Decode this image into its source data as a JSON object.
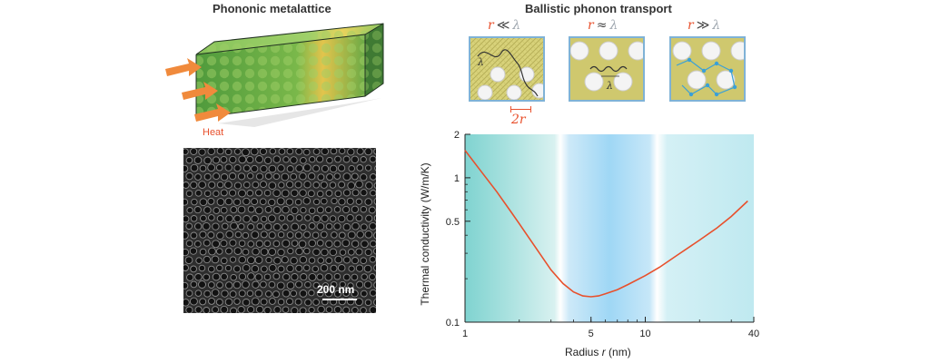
{
  "left_panel": {
    "title": "Phononic metalattice",
    "heat_label": "Heat",
    "sem_scale_label": "200 nm"
  },
  "right_panel": {
    "title": "Ballistic phonon transport",
    "regimes": [
      {
        "r": "r",
        "relation": "≪",
        "lambda": "λ"
      },
      {
        "r": "r",
        "relation": "≈",
        "lambda": "λ"
      },
      {
        "r": "r",
        "relation": "≫",
        "lambda": "λ"
      }
    ],
    "diameter_label": "2r",
    "wavelength_label": "λ"
  },
  "colors": {
    "heat_arrow": "#f08a3c",
    "curve": "#e8502c",
    "tile_border": "#7fb2d6",
    "tile_fill": "#c9c46a"
  },
  "chart_data": {
    "type": "line",
    "title": "",
    "xlabel_prefix": "Radius ",
    "xlabel_var": "r",
    "xlabel_suffix": " (nm)",
    "ylabel": "Thermal conductivity (W/m/K)",
    "xscale": "log",
    "yscale": "log",
    "xlim": [
      1,
      40
    ],
    "ylim": [
      0.1,
      2
    ],
    "xticks": [
      1,
      5,
      10,
      40
    ],
    "yticks": [
      0.1,
      0.5,
      1,
      2
    ],
    "series": [
      {
        "x": [
          1.0,
          1.2,
          1.5,
          1.8,
          2.0,
          2.5,
          3.0,
          3.5,
          4.0,
          4.5,
          5.0,
          5.5,
          6.0,
          7.0,
          8.0,
          10.0,
          12.0,
          15.0,
          20.0,
          25.0,
          30.0,
          37.0
        ],
        "y": [
          1.55,
          1.15,
          0.8,
          0.58,
          0.48,
          0.32,
          0.23,
          0.185,
          0.162,
          0.152,
          0.15,
          0.152,
          0.157,
          0.168,
          0.182,
          0.21,
          0.24,
          0.29,
          0.37,
          0.45,
          0.54,
          0.69
        ]
      }
    ]
  }
}
